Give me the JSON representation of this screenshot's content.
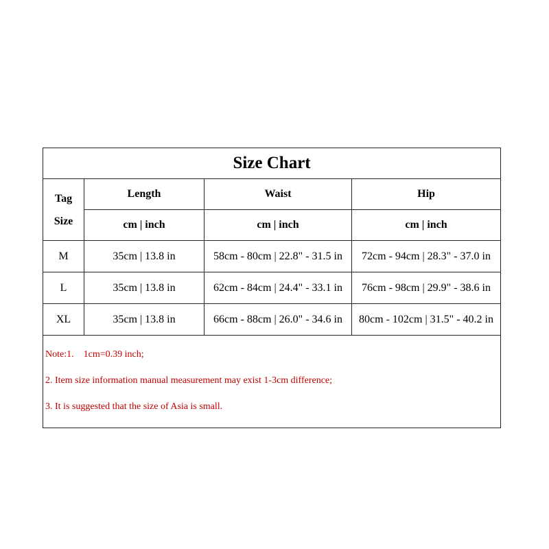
{
  "title": "Size Chart",
  "header": {
    "tag_line1": "Tag",
    "tag_line2": "Size",
    "columns": [
      "Length",
      "Waist",
      "Hip"
    ],
    "units": [
      "cm | inch",
      "cm | inch",
      "cm | inch"
    ]
  },
  "rows": [
    {
      "size": "M",
      "length": "35cm | 13.8 in",
      "waist": "58cm - 80cm | 22.8\" - 31.5 in",
      "hip": "72cm - 94cm | 28.3\" - 37.0 in"
    },
    {
      "size": "L",
      "length": "35cm | 13.8 in",
      "waist": "62cm - 84cm | 24.4\" - 33.1 in",
      "hip": "76cm - 98cm | 29.9\" - 38.6 in"
    },
    {
      "size": "XL",
      "length": "35cm | 13.8 in",
      "waist": "66cm - 88cm | 26.0\" - 34.6 in",
      "hip": "80cm - 102cm | 31.5\" - 40.2 in"
    }
  ],
  "notes": [
    "Note:1.    1cm=0.39 inch;",
    "2.  Item size information manual measurement may exist 1-3cm difference;",
    "3.  It is suggested that the size of Asia is small."
  ],
  "colors": {
    "note_text": "#c00000",
    "border": "#222222"
  }
}
